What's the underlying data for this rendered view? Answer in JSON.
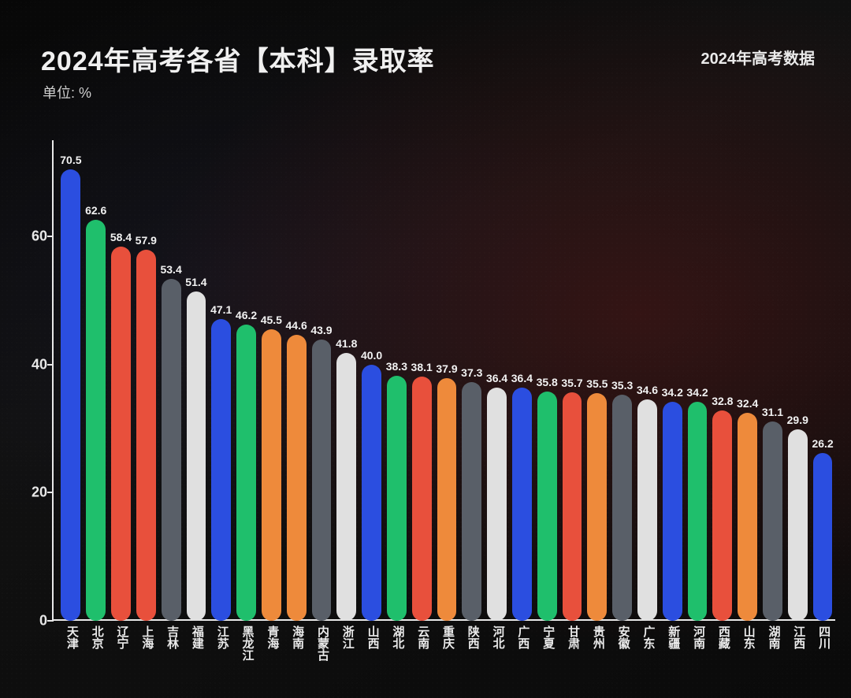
{
  "title": "2024年高考各省【本科】录取率",
  "subtitle": "单位: %",
  "corner_label": "2024年高考数据",
  "chart": {
    "type": "bar",
    "background_color": "#0a0a0a",
    "axis_color": "#e8e8e8",
    "text_color": "#f0f0f0",
    "value_label_color": "#f2f2f2",
    "title_fontsize": 34,
    "subtitle_fontsize": 18,
    "corner_fontsize": 20,
    "bar_width_ratio": 0.78,
    "bar_border_radius": 14,
    "ylim": [
      0,
      75
    ],
    "yticks": [
      0,
      20,
      40,
      60
    ],
    "categories": [
      "天津",
      "北京",
      "辽宁",
      "上海",
      "吉林",
      "福建",
      "江苏",
      "黑龙江",
      "青海",
      "海南",
      "内蒙古",
      "浙江",
      "山西",
      "湖北",
      "云南",
      "重庆",
      "陕西",
      "河北",
      "广西",
      "宁夏",
      "甘肃",
      "贵州",
      "安徽",
      "广东",
      "新疆",
      "河南",
      "西藏",
      "山东",
      "湖南",
      "江西",
      "四川"
    ],
    "values": [
      70.5,
      62.6,
      58.4,
      57.9,
      53.4,
      51.4,
      47.1,
      46.2,
      45.5,
      44.6,
      43.9,
      41.8,
      40.0,
      38.3,
      38.1,
      37.9,
      37.3,
      36.4,
      36.4,
      35.8,
      35.7,
      35.5,
      35.3,
      34.6,
      34.2,
      34.2,
      32.8,
      32.4,
      31.1,
      29.9,
      26.2
    ],
    "bar_colors": [
      "#2b4ee0",
      "#1fbf6c",
      "#e8503c",
      "#e8503c",
      "#595f68",
      "#e0e0e0",
      "#2b4ee0",
      "#1fbf6c",
      "#ee8a3b",
      "#ee8a3b",
      "#595f68",
      "#e0e0e0",
      "#2b4ee0",
      "#1fbf6c",
      "#e8503c",
      "#ee8a3b",
      "#595f68",
      "#e0e0e0",
      "#2b4ee0",
      "#1fbf6c",
      "#e8503c",
      "#ee8a3b",
      "#595f68",
      "#e0e0e0",
      "#2b4ee0",
      "#1fbf6c",
      "#e8503c",
      "#ee8a3b",
      "#595f68",
      "#e0e0e0",
      "#2b4ee0"
    ]
  }
}
